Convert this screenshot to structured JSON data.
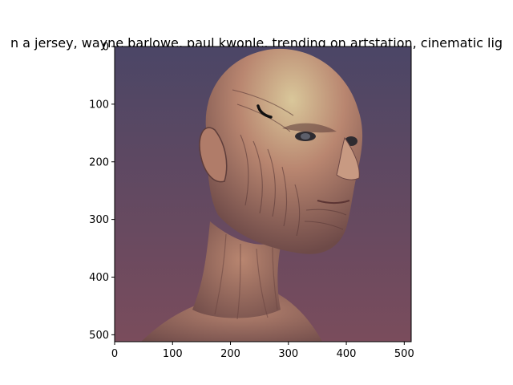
{
  "chart_data": {
    "type": "image",
    "title": "n a jersey,  wayne barlowe, paul kwonle,  trending on artstation, cinematic lig",
    "xlabel": "",
    "ylabel": "",
    "xlim": [
      0,
      512
    ],
    "ylim": [
      512,
      0
    ],
    "x_ticks": [
      0,
      100,
      200,
      300,
      400,
      500
    ],
    "y_ticks": [
      0,
      100,
      200,
      300,
      400,
      500
    ],
    "grid": false,
    "image": {
      "subject": "painted portrait of a gaunt bald humanoid creature with wrinkled, veined skin, three-quarter profile facing right",
      "background_colors": {
        "top": "#4b4666",
        "bottom": "#7a4c5c"
      },
      "skin_colors": {
        "highlight": "#d9c79a",
        "mid": "#b98670",
        "shadow": "#6e4a48"
      }
    }
  }
}
